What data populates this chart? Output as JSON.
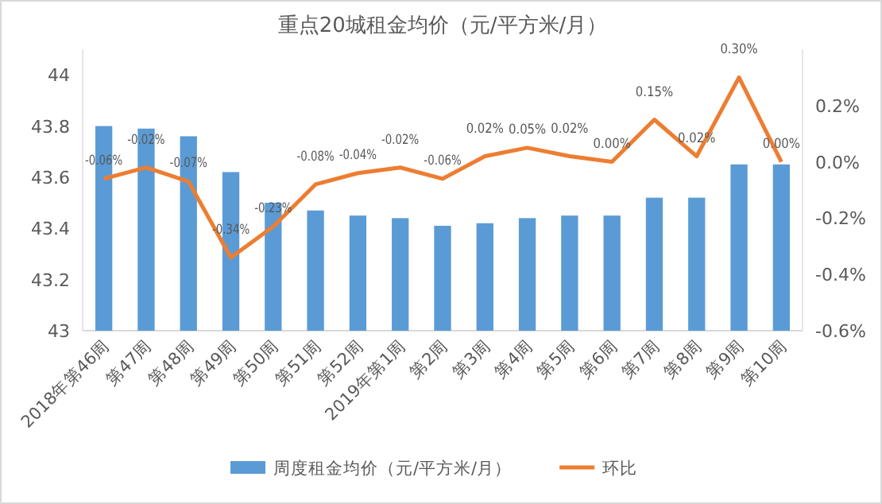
{
  "chart_data": {
    "type": "bar",
    "title": "重点20城租金均价（元/平方米/月）",
    "categories": [
      "2018年第46周",
      "第47周",
      "第48周",
      "第49周",
      "第50周",
      "第51周",
      "第52周",
      "2019年第1周",
      "第2周",
      "第3周",
      "第4周",
      "第5周",
      "第6周",
      "第7周",
      "第8周",
      "第9周",
      "第10周"
    ],
    "series": [
      {
        "name": "周度租金均价（元/平方米/月）",
        "color": "#5b9bd5",
        "values": [
          43.8,
          43.79,
          43.76,
          43.62,
          43.5,
          43.47,
          43.45,
          43.44,
          43.41,
          43.42,
          43.44,
          43.45,
          43.45,
          43.52,
          43.52,
          43.65,
          43.65
        ]
      },
      {
        "name": "环比",
        "type": "line",
        "axis": "y2",
        "color": "#ed7d31",
        "values": [
          -0.06,
          -0.02,
          -0.07,
          -0.34,
          -0.23,
          -0.08,
          -0.04,
          -0.02,
          -0.06,
          0.02,
          0.05,
          0.02,
          0.0,
          0.15,
          0.02,
          0.3,
          0.0
        ],
        "value_labels": [
          "-0.06%",
          "-0.02%",
          "-0.07%",
          "-0.34%",
          "-0.23%",
          "-0.08%",
          "-0.04%",
          "-0.02%",
          "-0.06%",
          "0.02%",
          "0.05%",
          "0.02%",
          "0.00%",
          "0.15%",
          "0.02%",
          "0.30%",
          "0.00%"
        ]
      }
    ],
    "ylim": [
      43,
      44.1
    ],
    "yticks": [
      43,
      43.2,
      43.4,
      43.6,
      43.8,
      44
    ],
    "y2lim": [
      -0.6,
      0.4
    ],
    "y2ticks": [
      {
        "value": -0.6,
        "label": "-0.6%"
      },
      {
        "value": -0.4,
        "label": "-0.4%"
      },
      {
        "value": -0.2,
        "label": "-0.2%"
      },
      {
        "value": 0,
        "label": "0.0%"
      },
      {
        "value": 0.2,
        "label": "0.2%"
      }
    ],
    "legend": "bottom"
  }
}
